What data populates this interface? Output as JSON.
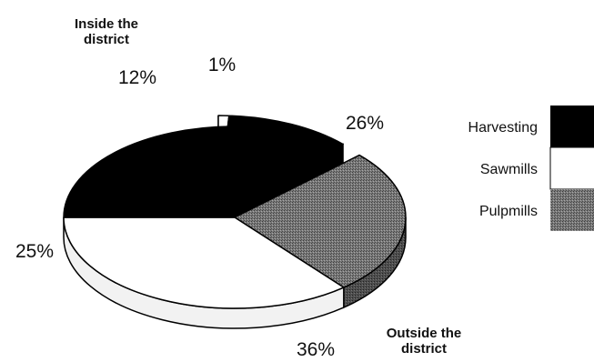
{
  "chart_data": {
    "type": "pie",
    "style": "3d-exploded",
    "title": "",
    "groups": [
      {
        "label": "Inside the district",
        "exploded": true
      },
      {
        "label": "Outside the district",
        "exploded": false
      }
    ],
    "slices": [
      {
        "group": 0,
        "category": "Sawmills",
        "value": 1,
        "label": "1%"
      },
      {
        "group": 0,
        "category": "Harvesting",
        "value": 12,
        "label": "12%"
      },
      {
        "group": 1,
        "category": "Pulpmills",
        "value": 26,
        "label": "26%"
      },
      {
        "group": 1,
        "category": "Sawmills",
        "value": 36,
        "label": "36%"
      },
      {
        "group": 1,
        "category": "Harvesting",
        "value": 25,
        "label": "25%"
      }
    ],
    "legend": [
      {
        "label": "Harvesting",
        "color": "#000000"
      },
      {
        "label": "Sawmills",
        "color": "#ffffff"
      },
      {
        "label": "Pulpmills",
        "color": "#6e6e6e"
      }
    ],
    "legend_placement": "right"
  }
}
